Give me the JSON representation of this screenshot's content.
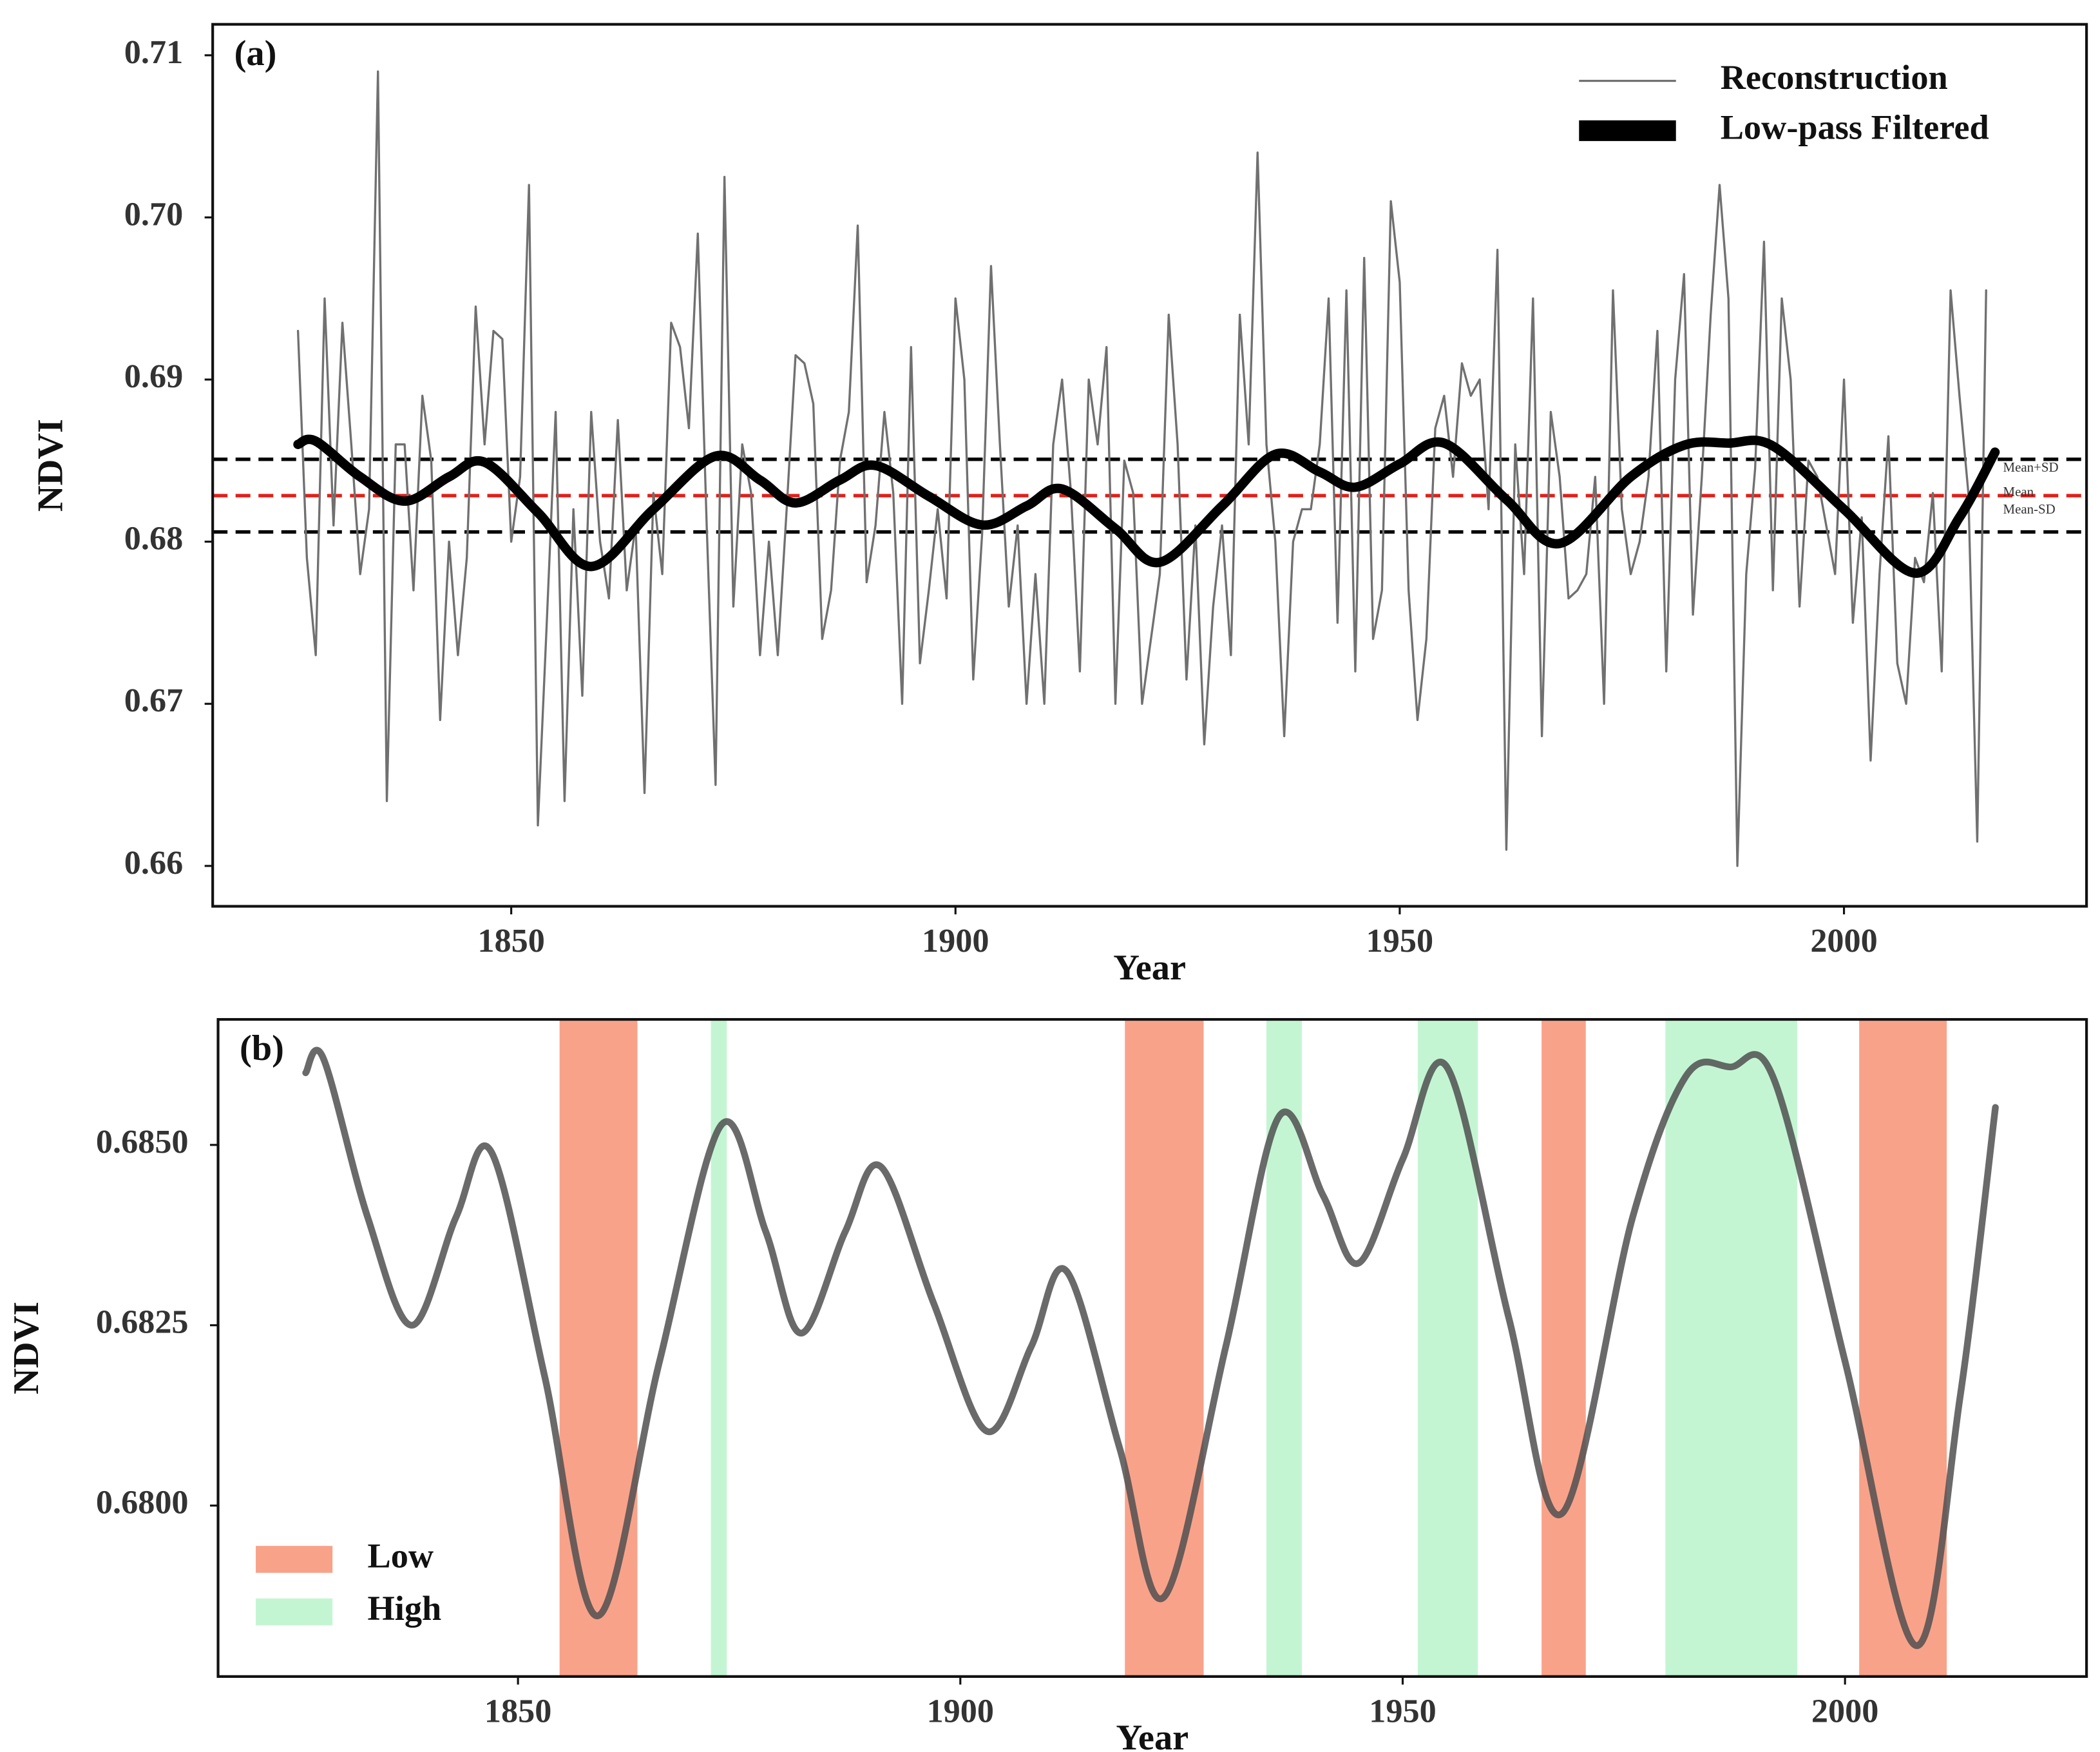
{
  "chart_data": [
    {
      "type": "line",
      "panel_label": "(a)",
      "xlabel": "Year",
      "ylabel": "NDVI",
      "xlim": [
        1816.4,
        2027.3
      ],
      "ylim": [
        0.65751,
        0.71191
      ],
      "xticks": [
        1850,
        1900,
        1950,
        2000
      ],
      "yticks": [
        0.66,
        0.67,
        0.68,
        0.69,
        {
          "value": 0.7,
          "label": "0.70"
        },
        0.71
      ],
      "legend": "upper right",
      "hlines": [
        {
          "name": "Mean+SD",
          "value": 0.68508,
          "color": "#000000"
        },
        {
          "name": "Mean",
          "value": 0.68284,
          "color": "#e0201b"
        },
        {
          "name": "Mean-SD",
          "value": 0.6806,
          "color": "#000000"
        }
      ],
      "series": [
        {
          "name": "Reconstruction",
          "color": "#707070",
          "linewidth": 1.6,
          "smooth": false,
          "x": [
            1826,
            1827,
            1828,
            1829,
            1830,
            1831,
            1832,
            1833,
            1834,
            1835,
            1836,
            1837,
            1838,
            1839,
            1840,
            1841,
            1842,
            1843,
            1844,
            1845,
            1846,
            1847,
            1848,
            1849,
            1850,
            1851,
            1852,
            1853,
            1854,
            1855,
            1856,
            1857,
            1858,
            1859,
            1860,
            1861,
            1862,
            1863,
            1864,
            1865,
            1866,
            1867,
            1868,
            1869,
            1870,
            1871,
            1872,
            1873,
            1874,
            1875,
            1876,
            1877,
            1878,
            1879,
            1880,
            1881,
            1882,
            1883,
            1884,
            1885,
            1886,
            1887,
            1888,
            1889,
            1890,
            1891,
            1892,
            1893,
            1894,
            1895,
            1896,
            1897,
            1898,
            1899,
            1900,
            1901,
            1902,
            1903,
            1904,
            1905,
            1906,
            1907,
            1908,
            1909,
            1910,
            1911,
            1912,
            1913,
            1914,
            1915,
            1916,
            1917,
            1918,
            1919,
            1920,
            1921,
            1922,
            1923,
            1924,
            1925,
            1926,
            1927,
            1928,
            1929,
            1930,
            1931,
            1932,
            1933,
            1934,
            1935,
            1936,
            1937,
            1938,
            1939,
            1940,
            1941,
            1942,
            1943,
            1944,
            1945,
            1946,
            1947,
            1948,
            1949,
            1950,
            1951,
            1952,
            1953,
            1954,
            1955,
            1956,
            1957,
            1958,
            1959,
            1960,
            1961,
            1962,
            1963,
            1964,
            1965,
            1966,
            1967,
            1968,
            1969,
            1970,
            1971,
            1972,
            1973,
            1974,
            1975,
            1976,
            1977,
            1978,
            1979,
            1980,
            1981,
            1982,
            1983,
            1984,
            1985,
            1986,
            1987,
            1988,
            1989,
            1990,
            1991,
            1992,
            1993,
            1994,
            1995,
            1996,
            1997,
            1998,
            1999,
            2000,
            2001,
            2002,
            2003,
            2004,
            2005,
            2006,
            2007,
            2008,
            2009,
            2010,
            2011,
            2012,
            2013,
            2014,
            2015,
            2016
          ],
          "values": [
            0.693,
            0.679,
            0.673,
            0.695,
            0.681,
            0.6935,
            0.686,
            0.678,
            0.682,
            0.709,
            0.664,
            0.686,
            0.686,
            0.677,
            0.689,
            0.685,
            0.669,
            0.68,
            0.673,
            0.679,
            0.6945,
            0.686,
            0.693,
            0.6925,
            0.68,
            0.684,
            0.702,
            0.6625,
            0.675,
            0.688,
            0.664,
            0.682,
            0.6705,
            0.688,
            0.68,
            0.6765,
            0.6875,
            0.677,
            0.681,
            0.6645,
            0.683,
            0.678,
            0.6935,
            0.692,
            0.687,
            0.699,
            0.681,
            0.665,
            0.7025,
            0.676,
            0.686,
            0.683,
            0.673,
            0.68,
            0.673,
            0.682,
            0.6915,
            0.691,
            0.6885,
            0.674,
            0.677,
            0.685,
            0.688,
            0.6995,
            0.6775,
            0.681,
            0.688,
            0.683,
            0.67,
            0.692,
            0.6725,
            0.677,
            0.682,
            0.6765,
            0.695,
            0.69,
            0.6715,
            0.6805,
            0.697,
            0.686,
            0.676,
            0.681,
            0.67,
            0.678,
            0.67,
            0.686,
            0.69,
            0.683,
            0.672,
            0.69,
            0.686,
            0.692,
            0.67,
            0.685,
            0.683,
            0.67,
            0.674,
            0.678,
            0.694,
            0.686,
            0.6715,
            0.681,
            0.6675,
            0.676,
            0.681,
            0.673,
            0.694,
            0.686,
            0.704,
            0.686,
            0.68,
            0.668,
            0.68,
            0.682,
            0.682,
            0.686,
            0.695,
            0.675,
            0.6955,
            0.672,
            0.6975,
            0.674,
            0.677,
            0.701,
            0.696,
            0.677,
            0.669,
            0.674,
            0.687,
            0.689,
            0.684,
            0.691,
            0.689,
            0.69,
            0.682,
            0.698,
            0.661,
            0.686,
            0.678,
            0.695,
            0.668,
            0.688,
            0.684,
            0.6765,
            0.677,
            0.678,
            0.684,
            0.67,
            0.6955,
            0.682,
            0.678,
            0.68,
            0.684,
            0.693,
            0.672,
            0.69,
            0.6965,
            0.6755,
            0.684,
            0.694,
            0.702,
            0.695,
            0.66,
            0.678,
            0.6845,
            0.6985,
            0.677,
            0.695,
            0.69,
            0.676,
            0.685,
            0.684,
            0.681,
            0.678,
            0.69,
            0.675,
            0.6815,
            0.6665,
            0.678,
            0.6865,
            0.6725,
            0.67,
            0.679,
            0.6775,
            0.683,
            0.672,
            0.6955,
            0.689,
            0.683,
            0.6615,
            0.6955
          ]
        },
        {
          "name": "Low-pass Filtered",
          "color": "#000000",
          "linewidth": 7,
          "smooth": true,
          "x": [
            1826,
            1828,
            1833,
            1838,
            1843,
            1847,
            1853,
            1859,
            1866,
            1873,
            1878,
            1882,
            1887,
            1891,
            1897,
            1903,
            1908,
            1912,
            1918,
            1923,
            1930,
            1936,
            1941,
            1945,
            1950,
            1955,
            1962,
            1968,
            1976,
            1982,
            1987,
            1992,
            2000,
            2008,
            2013,
            2017
          ],
          "values": [
            0.686,
            0.6862,
            0.684,
            0.6825,
            0.684,
            0.6849,
            0.6818,
            0.67847,
            0.682,
            0.68528,
            0.6838,
            0.68239,
            0.6838,
            0.6847,
            0.6828,
            0.68103,
            0.6822,
            0.68325,
            0.6808,
            0.67873,
            0.6822,
            0.68539,
            0.6843,
            0.68336,
            0.6848,
            0.68608,
            0.6826,
            0.67989,
            0.684,
            0.68595,
            0.68608,
            0.6859,
            0.682,
            0.67806,
            0.6815,
            0.68552
          ]
        }
      ]
    },
    {
      "type": "line",
      "panel_label": "(b)",
      "xlabel": "Year",
      "ylabel": "NDVI",
      "xlim": [
        1816.1,
        2027.3
      ],
      "ylim": [
        0.67763,
        0.68674
      ],
      "xticks": [
        1850,
        1900,
        1950,
        2000
      ],
      "yticks": [
        {
          "value": 0.68,
          "label": "0.6800"
        },
        {
          "value": 0.6825,
          "label": "0.6825"
        },
        {
          "value": 0.685,
          "label": "0.6850"
        }
      ],
      "legend": "lower left",
      "spans": [
        {
          "name": "Low",
          "color": "#f9a28a",
          "ranges": [
            [
              1854.7,
              1863.5
            ],
            [
              1918.6,
              1927.5
            ],
            [
              1965.7,
              1970.7
            ],
            [
              2001.6,
              2011.5
            ]
          ]
        },
        {
          "name": "High",
          "color": "#c4f5d3",
          "ranges": [
            [
              1871.8,
              1873.6
            ],
            [
              1934.6,
              1938.6
            ],
            [
              1951.7,
              1958.5
            ],
            [
              1979.7,
              1994.6
            ]
          ]
        }
      ],
      "series": [
        {
          "color": "#505050",
          "linewidth": 5,
          "smooth": true,
          "x": [
            1826,
            1828,
            1833,
            1838,
            1843,
            1847,
            1853,
            1859,
            1866,
            1873,
            1878,
            1882,
            1887,
            1891,
            1897,
            1903,
            1908,
            1912,
            1918,
            1923,
            1930,
            1936,
            1941,
            1945,
            1950,
            1955,
            1962,
            1968,
            1976,
            1982,
            1987,
            1992,
            2000,
            2008,
            2013,
            2017
          ],
          "values": [
            0.686,
            0.6862,
            0.684,
            0.6825,
            0.684,
            0.6849,
            0.6818,
            0.67847,
            0.682,
            0.68528,
            0.6838,
            0.68239,
            0.6838,
            0.6847,
            0.6828,
            0.68103,
            0.6822,
            0.68325,
            0.6808,
            0.67873,
            0.6822,
            0.68539,
            0.6843,
            0.68336,
            0.6848,
            0.68608,
            0.6826,
            0.67989,
            0.684,
            0.68595,
            0.68608,
            0.6859,
            0.682,
            0.67806,
            0.6815,
            0.68552
          ]
        }
      ]
    }
  ]
}
